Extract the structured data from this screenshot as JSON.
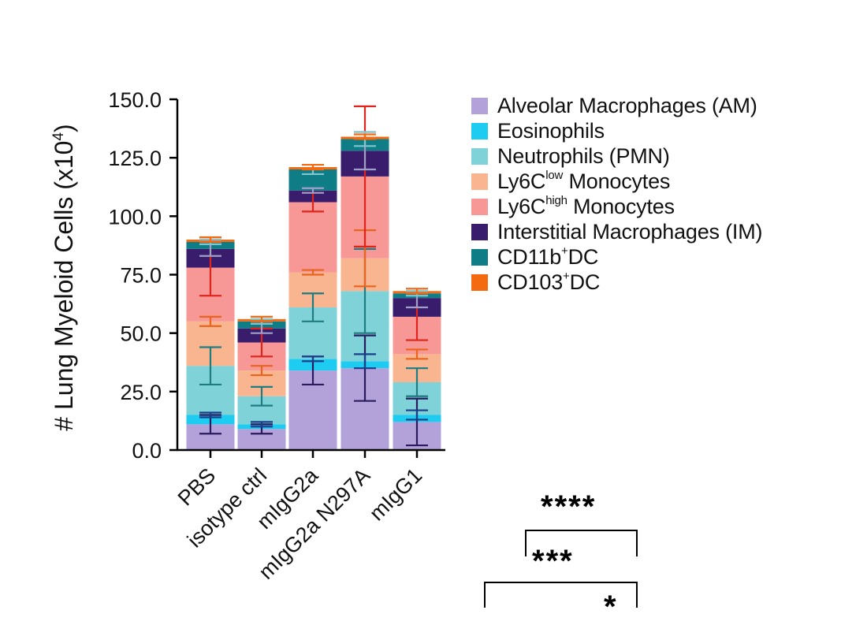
{
  "chart_data": {
    "type": "bar",
    "stacked": true,
    "ylabel_main": "# Lung Myeloid Cells (x10",
    "ylabel_sup": "4",
    "ylabel_end": ")",
    "ylim": [
      0,
      150
    ],
    "yticks": [
      "0.0",
      "25.0",
      "50.0",
      "75.0",
      "100.0",
      "125.0",
      "150.0"
    ],
    "categories": [
      "PBS",
      "isotype ctrl",
      "mIgG2a",
      "mIgG2a N297A",
      "mIgG1"
    ],
    "grid": false,
    "legend_position": "right",
    "series": [
      {
        "name": "Alveolar Macrophages (AM)",
        "color": "#b3a2d9",
        "errcolor": "#2a1a5e",
        "values": [
          11,
          9,
          34,
          35,
          12
        ],
        "err": [
          4,
          2,
          6,
          14,
          10
        ]
      },
      {
        "name": "Eosinophils",
        "color": "#1ecbf1",
        "errcolor": "#1a3f8a",
        "values": [
          4,
          2,
          5,
          3,
          3
        ],
        "err": [
          1,
          1,
          1,
          3,
          2
        ]
      },
      {
        "name": "Neutrophils (PMN)",
        "color": "#7fd2d8",
        "errcolor": "#1f7c80",
        "values": [
          21,
          12,
          22,
          30,
          14
        ],
        "err": [
          8,
          4,
          6,
          18,
          6
        ]
      },
      {
        "name": "Ly6C^low Monocytes",
        "name_main": "Ly6C",
        "name_sup": "low",
        "name_end": " Monocytes",
        "color": "#f8b58f",
        "errcolor": "#e8641f",
        "values": [
          19,
          11,
          15,
          14,
          12
        ],
        "err": [
          2,
          2,
          1,
          12,
          2
        ]
      },
      {
        "name": "Ly6C^high Monocytes",
        "name_main": "Ly6C",
        "name_sup": "high",
        "name_end": " Monocytes",
        "color": "#f79896",
        "errcolor": "#e0241c",
        "values": [
          23,
          12,
          30,
          35,
          16
        ],
        "err": [
          12,
          6,
          4,
          30,
          10
        ]
      },
      {
        "name": "Interstitial Macrophages (IM)",
        "color": "#3a1c6d",
        "errcolor": "#9da0c8",
        "values": [
          8,
          6,
          5,
          11,
          8
        ],
        "err": [
          3,
          2,
          1,
          8,
          4
        ]
      },
      {
        "name": "CD11b+DC",
        "name_main": "CD11b",
        "name_sup": "+",
        "name_end": "DC",
        "color": "#0e7d86",
        "errcolor": "#7fc7d0",
        "values": [
          3,
          3,
          9,
          5,
          2
        ],
        "err": [
          1,
          1,
          2,
          3,
          1
        ]
      },
      {
        "name": "CD103+DC",
        "name_main": "CD103",
        "name_sup": "+",
        "name_end": "DC",
        "color": "#f36a10",
        "errcolor": "#f36a10",
        "values": [
          1,
          1,
          1,
          1,
          1
        ],
        "err": [
          1,
          1,
          1,
          1,
          1
        ]
      }
    ],
    "annotations": [
      "****",
      "***",
      "*"
    ]
  }
}
